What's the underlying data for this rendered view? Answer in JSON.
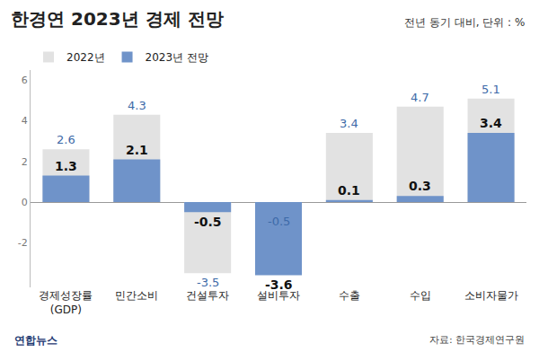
{
  "chart_data": {
    "type": "bar",
    "title": "한경연 2023년 경제 전망",
    "subtitle": "전년 동기 대비, 단위 : %",
    "source": "자료: 한국경제연구원",
    "credit": "연합뉴스",
    "categories": [
      "경제성장률\n(GDP)",
      "민간소비",
      "건설투자",
      "설비투자",
      "수출",
      "수입",
      "소비자물가"
    ],
    "series": [
      {
        "name": "2022년",
        "color": "#e2e2e2",
        "values": [
          2.6,
          4.3,
          -3.5,
          -0.5,
          3.4,
          4.7,
          5.1
        ]
      },
      {
        "name": "2023년 전망",
        "color": "#6f93c9",
        "values": [
          1.3,
          2.1,
          -0.5,
          -3.6,
          0.1,
          0.3,
          3.4
        ]
      }
    ],
    "ylim": [
      -4.2,
      6.5
    ],
    "yticks": [
      -2,
      0,
      2,
      4,
      6
    ],
    "grid": false,
    "legend": "top left",
    "data_labels": true
  }
}
